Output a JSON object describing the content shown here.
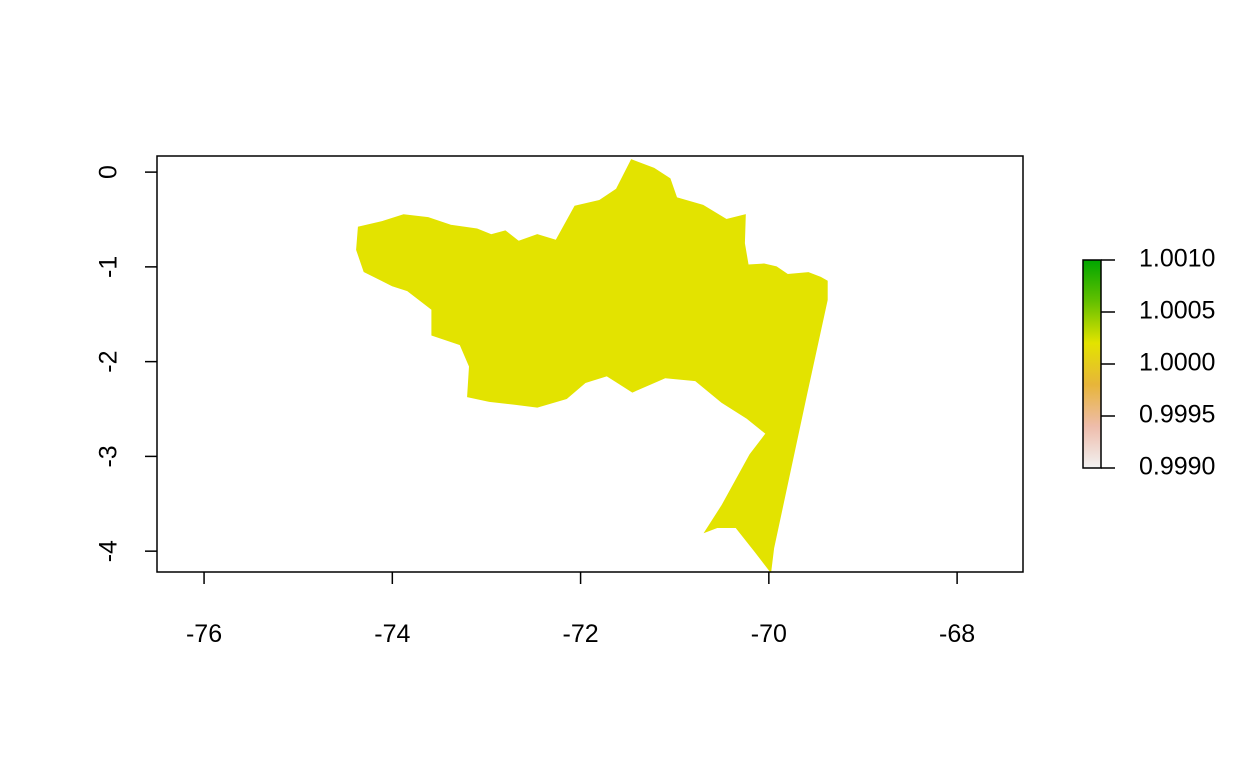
{
  "chart_data": {
    "type": "raster-map",
    "title": "",
    "xlabel": "",
    "ylabel": "",
    "xlim": [
      -76.5,
      -67.3
    ],
    "ylim": [
      -4.22,
      0.17
    ],
    "x_ticks": [
      {
        "value": -76,
        "label": "-76"
      },
      {
        "value": -74,
        "label": "-74"
      },
      {
        "value": -72,
        "label": "-72"
      },
      {
        "value": -70,
        "label": "-70"
      },
      {
        "value": -68,
        "label": "-68"
      }
    ],
    "y_ticks": [
      {
        "value": 0,
        "label": "0"
      },
      {
        "value": -1,
        "label": "-1"
      },
      {
        "value": -2,
        "label": "-2"
      },
      {
        "value": -3,
        "label": "-3"
      },
      {
        "value": -4,
        "label": "-4"
      }
    ],
    "region_value": 1.0,
    "region_color": "#e3e300",
    "region_outline": [
      [
        -74.36,
        -0.58
      ],
      [
        -74.1,
        -0.52
      ],
      [
        -73.88,
        -0.45
      ],
      [
        -73.62,
        -0.48
      ],
      [
        -73.38,
        -0.56
      ],
      [
        -73.1,
        -0.6
      ],
      [
        -72.95,
        -0.66
      ],
      [
        -72.8,
        -0.62
      ],
      [
        -72.66,
        -0.73
      ],
      [
        -72.46,
        -0.66
      ],
      [
        -72.26,
        -0.72
      ],
      [
        -72.06,
        -0.36
      ],
      [
        -71.8,
        -0.3
      ],
      [
        -71.62,
        -0.18
      ],
      [
        -71.46,
        0.13
      ],
      [
        -71.22,
        0.04
      ],
      [
        -71.05,
        -0.07
      ],
      [
        -70.98,
        -0.27
      ],
      [
        -70.7,
        -0.35
      ],
      [
        -70.45,
        -0.5
      ],
      [
        -70.25,
        -0.45
      ],
      [
        -70.26,
        -0.75
      ],
      [
        -70.22,
        -0.98
      ],
      [
        -70.05,
        -0.97
      ],
      [
        -69.92,
        -1.0
      ],
      [
        -69.8,
        -1.08
      ],
      [
        -69.58,
        -1.06
      ],
      [
        -69.45,
        -1.11
      ],
      [
        -69.38,
        -1.15
      ],
      [
        -69.38,
        -1.35
      ],
      [
        -69.6,
        -2.35
      ],
      [
        -69.95,
        -3.97
      ],
      [
        -69.98,
        -4.22
      ],
      [
        -70.15,
        -4.0
      ],
      [
        -70.35,
        -3.75
      ],
      [
        -70.55,
        -3.75
      ],
      [
        -70.68,
        -3.8
      ],
      [
        -70.5,
        -3.52
      ],
      [
        -70.2,
        -2.98
      ],
      [
        -70.03,
        -2.76
      ],
      [
        -70.23,
        -2.6
      ],
      [
        -70.5,
        -2.43
      ],
      [
        -70.78,
        -2.2
      ],
      [
        -71.1,
        -2.17
      ],
      [
        -71.45,
        -2.32
      ],
      [
        -71.72,
        -2.15
      ],
      [
        -71.95,
        -2.22
      ],
      [
        -72.15,
        -2.39
      ],
      [
        -72.46,
        -2.48
      ],
      [
        -72.7,
        -2.45
      ],
      [
        -72.97,
        -2.42
      ],
      [
        -73.2,
        -2.37
      ],
      [
        -73.18,
        -2.05
      ],
      [
        -73.28,
        -1.82
      ],
      [
        -73.58,
        -1.72
      ],
      [
        -73.58,
        -1.45
      ],
      [
        -73.84,
        -1.25
      ],
      [
        -74.0,
        -1.2
      ],
      [
        -74.3,
        -1.05
      ],
      [
        -74.38,
        -0.82
      ]
    ],
    "legend": {
      "position": "right",
      "ticks": [
        {
          "value": 1.001,
          "label": "1.0010"
        },
        {
          "value": 1.0005,
          "label": "1.0005"
        },
        {
          "value": 1.0,
          "label": "1.0000"
        },
        {
          "value": 0.9995,
          "label": "0.9995"
        },
        {
          "value": 0.999,
          "label": "0.9990"
        }
      ],
      "range": [
        0.999,
        1.001
      ],
      "gradient_colors": [
        "#f2f2f2",
        "#eebcab",
        "#e7b53a",
        "#e3e300",
        "#64c000",
        "#00a600"
      ]
    }
  }
}
